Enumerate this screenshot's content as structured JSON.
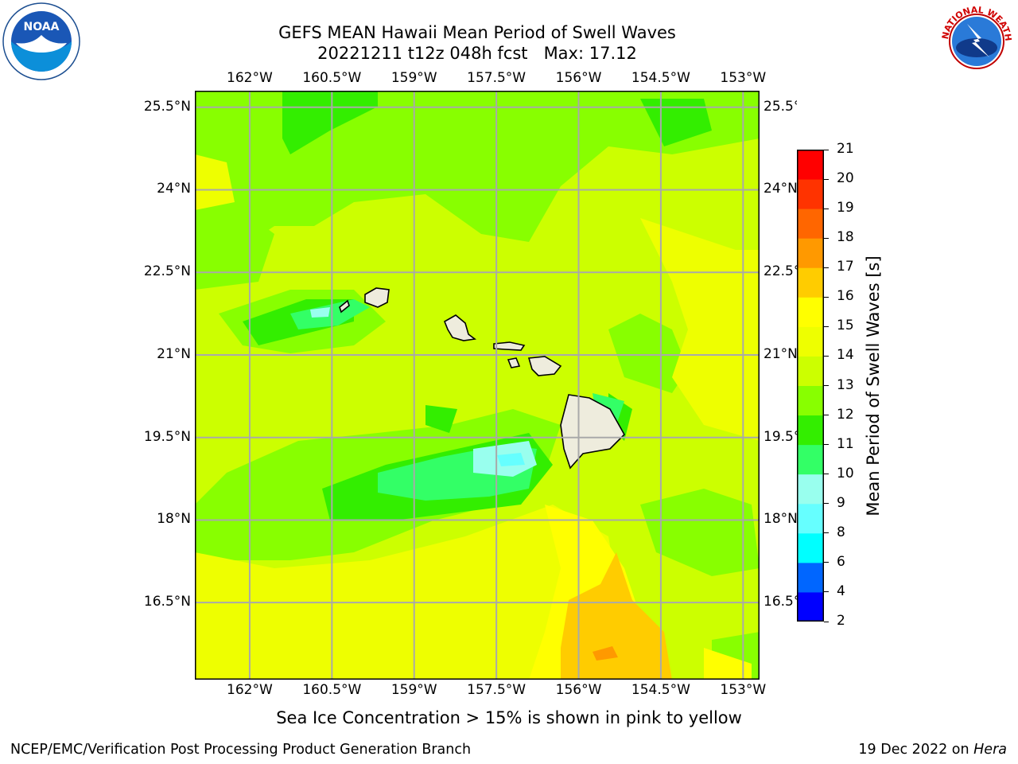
{
  "title": {
    "line1": "GEFS MEAN Hawaii Mean Period of Swell Waves",
    "line2": "20221211 t12z 048h fcst   Max: 17.12"
  },
  "map": {
    "lon_labels": [
      "162°W",
      "160.5°W",
      "159°W",
      "157.5°W",
      "156°W",
      "154.5°W",
      "153°W"
    ],
    "lat_labels": [
      "25.5°N",
      "24°N",
      "22.5°N",
      "21°N",
      "19.5°N",
      "18°N",
      "16.5°N"
    ],
    "lon_range": [
      -163.0,
      -152.7
    ],
    "lat_range": [
      15.1,
      25.8
    ],
    "islands": [
      "Niihau",
      "Kauai",
      "Oahu",
      "Molokai",
      "Lanai",
      "Maui",
      "Hawaii"
    ]
  },
  "colorbar": {
    "label": "Mean Period of Swell Waves [s]",
    "ticks": [
      "2",
      "4",
      "6",
      "8",
      "9",
      "10",
      "11",
      "12",
      "13",
      "14",
      "15",
      "16",
      "17",
      "18",
      "19",
      "20",
      "21"
    ],
    "colors": [
      "#0000ff",
      "#0066ff",
      "#00ffff",
      "#66ffff",
      "#99ffee",
      "#33ff66",
      "#33ee00",
      "#88ff00",
      "#ccff00",
      "#eeff00",
      "#ffff00",
      "#ffcc00",
      "#ff9900",
      "#ff6600",
      "#ff3300",
      "#ff0000"
    ]
  },
  "colors": {
    "grid": "#a9a9a9",
    "land": "#eeecdd"
  },
  "note": "Sea Ice Concentration > 15% is shown in pink to yellow",
  "footer": {
    "left": "NCEP/EMC/Verification Post Processing Product Generation Branch",
    "right_prefix": "19 Dec 2022 on ",
    "right_host": "Hera"
  },
  "logos": {
    "left_text": "NOAA",
    "right_text": "NATIONAL WEATHER SERVICE"
  }
}
